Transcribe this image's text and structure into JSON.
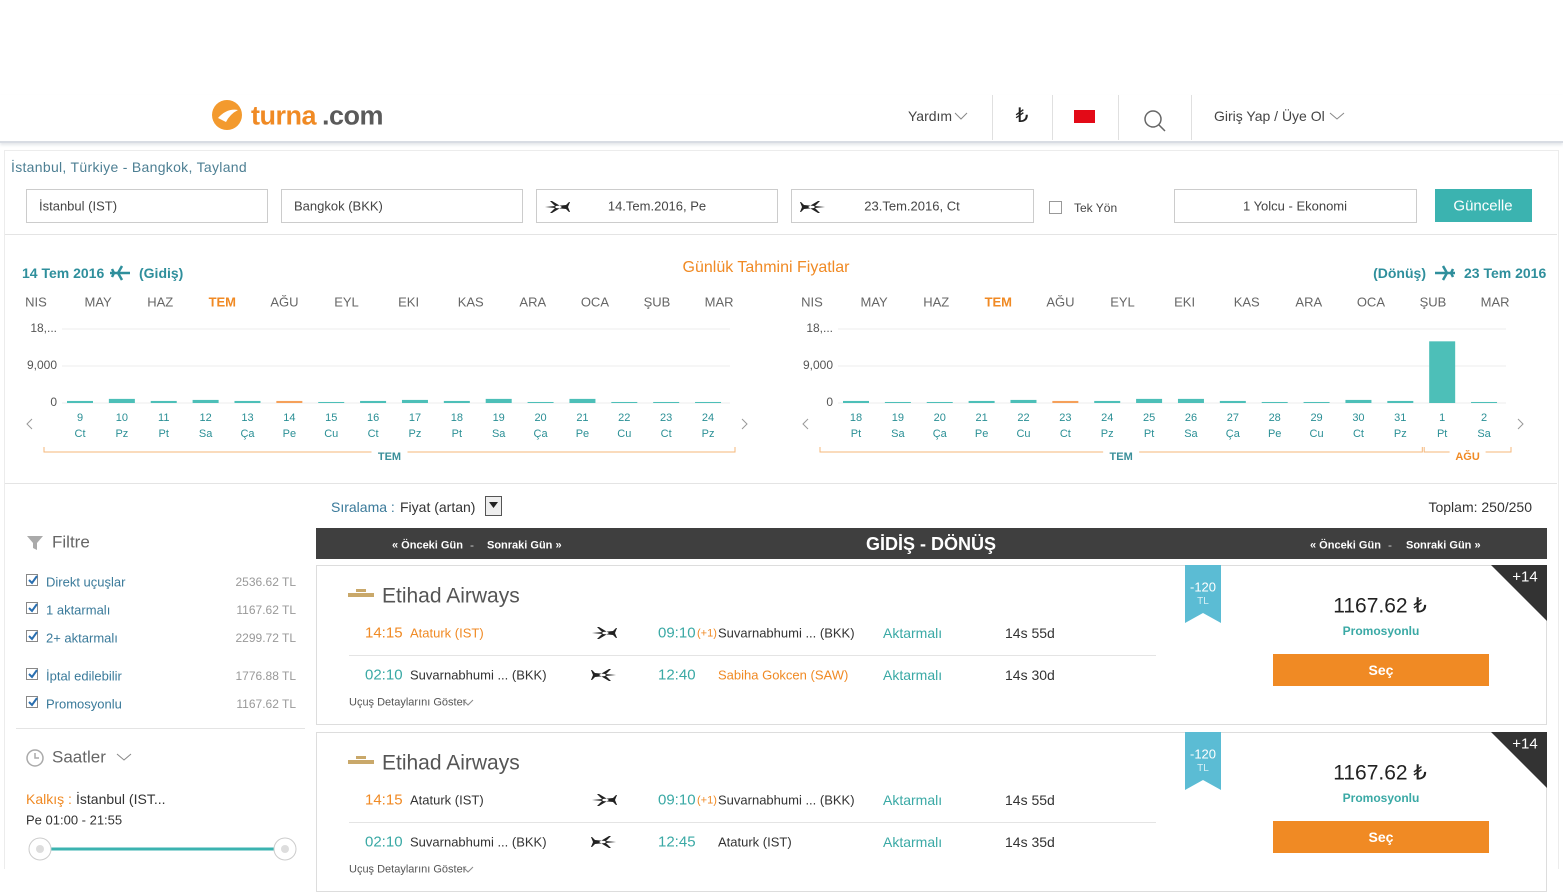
{
  "header": {
    "logo_brand": "turna",
    "logo_tld": ".com",
    "help": "Yardım",
    "currency": "₺",
    "login": "Giriş Yap / Üye Ol"
  },
  "route": "İstanbul, Türkiye - Bangkok, Tayland",
  "search": {
    "from": "İstanbul (IST)",
    "to": "Bangkok (BKK)",
    "depart": "14.Tem.2016, Pe",
    "return": "23.Tem.2016, Ct",
    "one_way": "Tek Yön",
    "passengers": "1 Yolcu - Ekonomi",
    "button": "Güncelle"
  },
  "price_charts": {
    "title": "Günlük Tahmini Fiyatlar",
    "outbound": {
      "date": "14 Tem 2016",
      "label": "(Gidiş)",
      "months": [
        "NIS",
        "MAY",
        "HAZ",
        "TEM",
        "AĞU",
        "EYL",
        "EKI",
        "KAS",
        "ARA",
        "OCA",
        "ŞUB",
        "MAR"
      ],
      "selected_month": 3,
      "ylim": [
        0,
        18000
      ],
      "yticks": [
        0,
        {
          "value": 9000,
          "label": "9,000"
        },
        {
          "value": 18000,
          "label": "18,..."
        }
      ],
      "days": [
        "9",
        "10",
        "11",
        "12",
        "13",
        "14",
        "15",
        "16",
        "17",
        "18",
        "19",
        "20",
        "21",
        "22",
        "23",
        "24"
      ],
      "weekdays": [
        "Ct",
        "Pz",
        "Pt",
        "Sa",
        "Ça",
        "Pe",
        "Cu",
        "Ct",
        "Pz",
        "Pt",
        "Sa",
        "Ça",
        "Pe",
        "Cu",
        "Ct",
        "Pz"
      ],
      "values": [
        500,
        1000,
        500,
        750,
        500,
        500,
        250,
        500,
        750,
        500,
        1000,
        250,
        1000,
        250,
        250,
        250
      ],
      "selected_day": 5,
      "color": "#4dbfb8",
      "selected_color": "#f5a05a",
      "month_groups": [
        "TEM"
      ]
    },
    "inbound": {
      "date": "23 Tem 2016",
      "label": "(Dönüş)",
      "months": [
        "NIS",
        "MAY",
        "HAZ",
        "TEM",
        "AĞU",
        "EYL",
        "EKI",
        "KAS",
        "ARA",
        "OCA",
        "ŞUB",
        "MAR"
      ],
      "selected_month": 3,
      "ylim": [
        0,
        18000
      ],
      "yticks": [
        0,
        {
          "value": 9000,
          "label": "9,000"
        },
        {
          "value": 18000,
          "label": "18,..."
        }
      ],
      "days": [
        "18",
        "19",
        "20",
        "21",
        "22",
        "23",
        "24",
        "25",
        "26",
        "27",
        "28",
        "29",
        "30",
        "31",
        "1",
        "2"
      ],
      "weekdays": [
        "Pt",
        "Sa",
        "Ça",
        "Pe",
        "Cu",
        "Ct",
        "Pz",
        "Pt",
        "Sa",
        "Ça",
        "Pe",
        "Cu",
        "Ct",
        "Pz",
        "Pt",
        "Sa"
      ],
      "values": [
        500,
        250,
        250,
        500,
        750,
        500,
        500,
        1000,
        1000,
        500,
        250,
        250,
        750,
        500,
        15000,
        250
      ],
      "selected_day": 5,
      "color": "#4dbfb8",
      "selected_color": "#f5a05a",
      "month_groups": [
        "TEM",
        "AĞU"
      ]
    }
  },
  "sort": {
    "label": "Sıralama :",
    "value": "Fiyat (artan)"
  },
  "total": "Toplam: 250/250",
  "filters": {
    "title": "Filtre",
    "items": [
      {
        "label": "Direkt uçuşlar",
        "price": "2536.62 TL"
      },
      {
        "label": "1 aktarmalı",
        "price": "1167.62 TL"
      },
      {
        "label": "2+ aktarmalı",
        "price": "2299.72 TL"
      },
      {
        "label": "İptal edilebilir",
        "price": "1776.88 TL"
      },
      {
        "label": "Promosyonlu",
        "price": "1167.62 TL"
      }
    ]
  },
  "times": {
    "title": "Saatler",
    "depart_label": "Kalkış :",
    "depart_city": "İstanbul (IST...",
    "range": "Pe 01:00 - 21:55"
  },
  "results_header": {
    "prev": "« Önceki Gün",
    "sep": "-",
    "next": "Sonraki Gün »",
    "title": "GİDİŞ - DÖNÜŞ"
  },
  "results": [
    {
      "airline": "Etihad Airways",
      "legs": [
        {
          "dep_time": "14:15",
          "dep_airport": "Ataturk (IST)",
          "dep_highlight": true,
          "arr_time": "09:10",
          "next_day": "(+1)",
          "arr_airport": "Suvarnabhumi ... (BKK)",
          "arr_highlight": false,
          "stops": "Aktarmalı",
          "duration": "14s 55d"
        },
        {
          "dep_time": "02:10",
          "dep_airport": "Suvarnabhumi ... (BKK)",
          "dep_highlight": false,
          "arr_time": "12:40",
          "next_day": null,
          "arr_airport": "Sabiha Gokcen (SAW)",
          "arr_highlight": true,
          "stops": "Aktarmalı",
          "duration": "14s 30d"
        }
      ],
      "details": "Uçuş Detaylarını Göster",
      "discount": "-120",
      "discount_unit": "TL",
      "badge": "+14",
      "price": "1167.62 ₺",
      "promo": "Promosyonlu",
      "select": "Seç"
    },
    {
      "airline": "Etihad Airways",
      "legs": [
        {
          "dep_time": "14:15",
          "dep_airport": "Ataturk (IST)",
          "dep_highlight": false,
          "arr_time": "09:10",
          "next_day": "(+1)",
          "arr_airport": "Suvarnabhumi ... (BKK)",
          "arr_highlight": false,
          "stops": "Aktarmalı",
          "duration": "14s 55d"
        },
        {
          "dep_time": "02:10",
          "dep_airport": "Suvarnabhumi ... (BKK)",
          "dep_highlight": false,
          "arr_time": "12:45",
          "next_day": null,
          "arr_airport": "Ataturk (IST)",
          "arr_highlight": false,
          "stops": "Aktarmalı",
          "duration": "14s 35d"
        }
      ],
      "details": "Uçuş Detaylarını Göster",
      "discount": "-120",
      "discount_unit": "TL",
      "badge": "+14",
      "price": "1167.62 ₺",
      "promo": "Promosyonlu",
      "select": "Seç"
    }
  ]
}
